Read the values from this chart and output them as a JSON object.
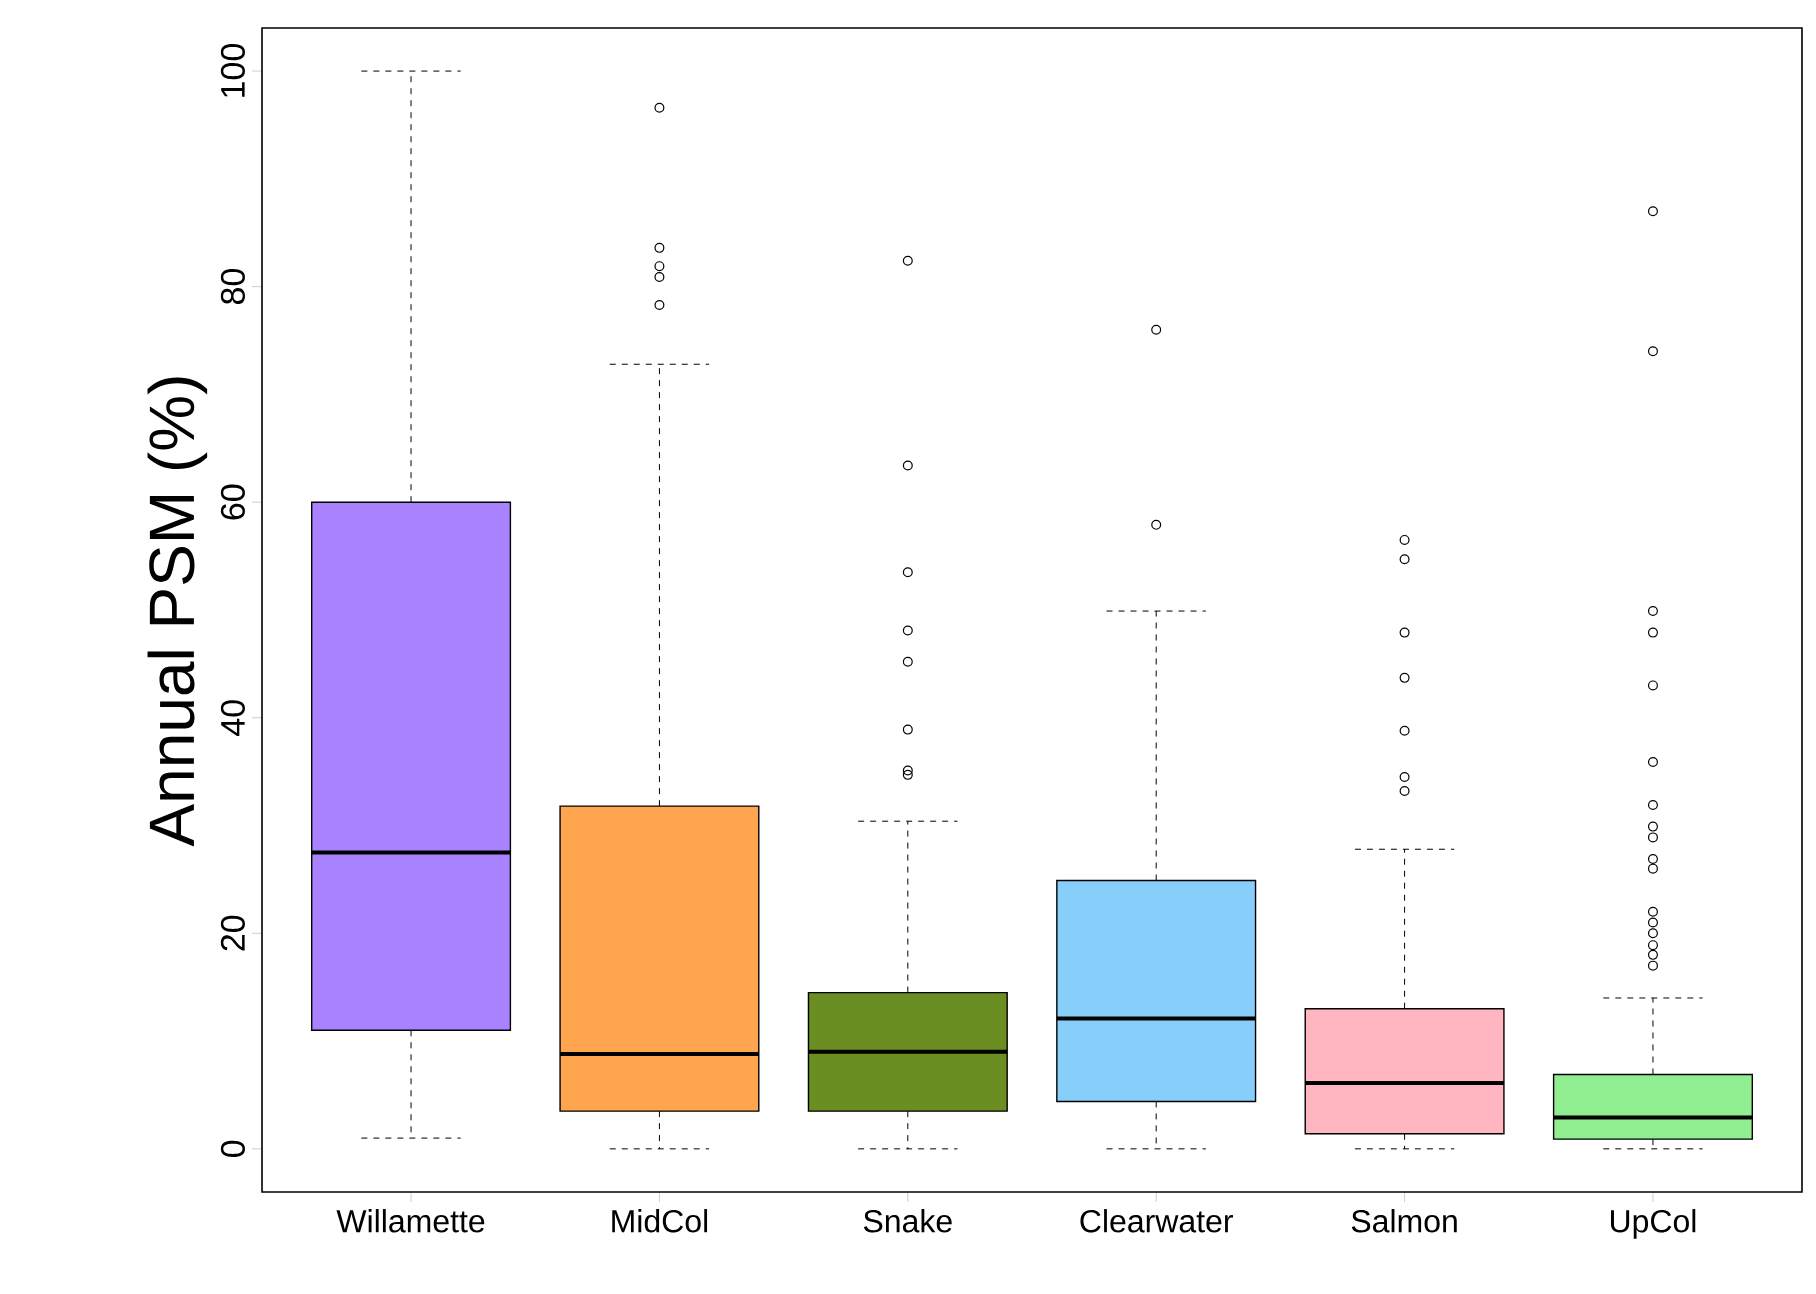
{
  "chart_data": {
    "type": "box",
    "ylabel": "Annual PSM (%)",
    "categories": [
      "Willamette",
      "MidCol",
      "Snake",
      "Clearwater",
      "Salmon",
      "UpCol"
    ],
    "colors": [
      "#a982ff",
      "#ffa54f",
      "#6b8e23",
      "#87cefa",
      "#ffb6c1",
      "#90ee90"
    ],
    "boxes": [
      {
        "low": 1,
        "q1": 11,
        "median": 27.5,
        "q3": 60,
        "high": 100
      },
      {
        "low": 0,
        "q1": 3.5,
        "median": 8.8,
        "q3": 31.8,
        "high": 72.8,
        "outliers": [
          96.6,
          83.6,
          81.9,
          80.9,
          78.3
        ]
      },
      {
        "low": 0,
        "q1": 3.5,
        "median": 9,
        "q3": 14.5,
        "high": 30.4,
        "outliers": [
          82.4,
          63.4,
          53.5,
          48.1,
          45.2,
          38.9,
          35.1,
          34.7
        ]
      },
      {
        "low": 0,
        "q1": 4.4,
        "median": 12.1,
        "q3": 24.9,
        "high": 49.9,
        "outliers": [
          76,
          57.9
        ]
      },
      {
        "low": 0,
        "q1": 1.4,
        "median": 6.1,
        "q3": 13,
        "high": 27.8,
        "outliers": [
          56.5,
          54.7,
          47.9,
          43.7,
          38.8,
          34.5,
          33.2
        ]
      },
      {
        "low": 0,
        "q1": 0.9,
        "median": 2.9,
        "q3": 6.9,
        "high": 14,
        "outliers": [
          87,
          74,
          49.9,
          47.9,
          43,
          35.9,
          31.9,
          29.9,
          28.9,
          26.9,
          26,
          22,
          21,
          20,
          18.9,
          18,
          17
        ]
      }
    ],
    "ylim": [
      -4,
      104
    ],
    "yticks": [
      0,
      20,
      40,
      60,
      80,
      100
    ],
    "marker": "circle"
  }
}
